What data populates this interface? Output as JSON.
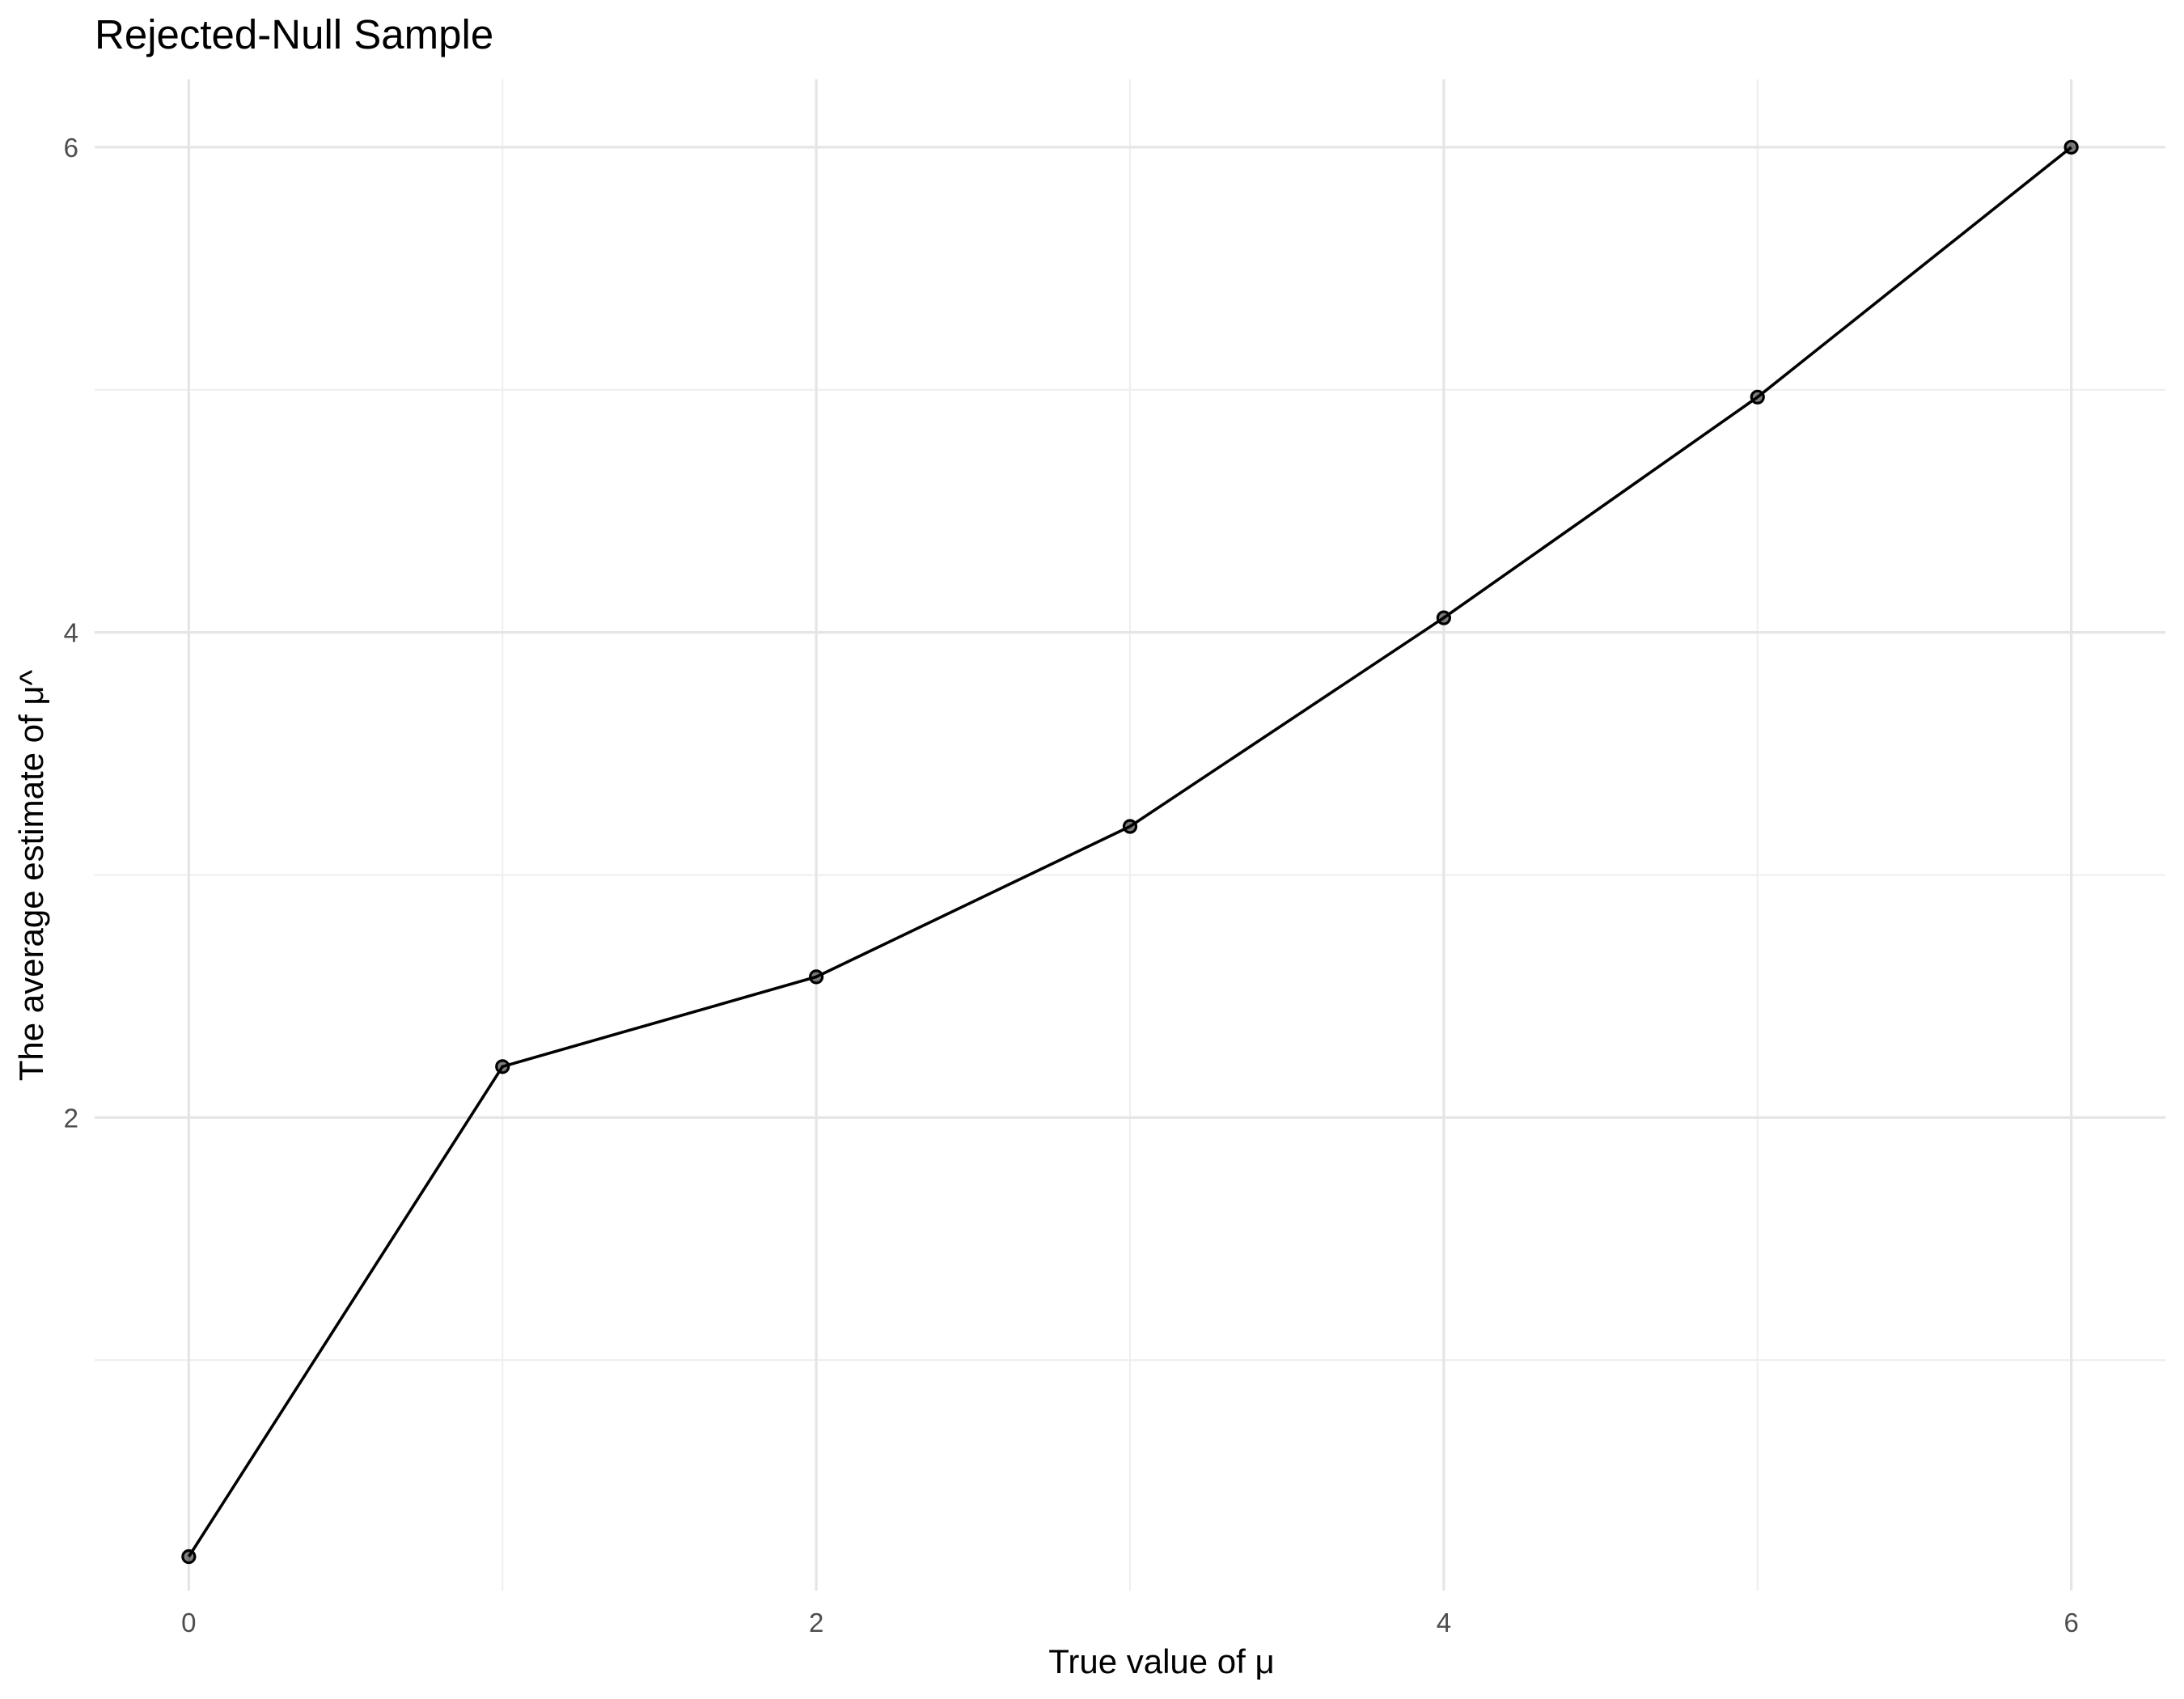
{
  "chart_data": {
    "type": "line",
    "title": "Rejected-Null Sample",
    "xlabel": "True value of μ",
    "ylabel": "The average estimate of μ^",
    "x": [
      0,
      1,
      2,
      3,
      4,
      5,
      6
    ],
    "series": [
      {
        "values": [
          0.19,
          2.21,
          2.58,
          3.2,
          4.06,
          4.97,
          6.0
        ]
      }
    ],
    "xlim": [
      -0.3,
      6.3
    ],
    "ylim": [
      0.05,
      6.28
    ],
    "xticks": [
      0,
      2,
      4,
      6
    ],
    "yticks": [
      2,
      4,
      6
    ],
    "x_minor": [
      1,
      3,
      5
    ],
    "y_minor": [
      1,
      3,
      5
    ],
    "grid": true,
    "colors": {
      "line": "#000000",
      "point": "#000000",
      "grid": "#e5e5e5"
    }
  }
}
